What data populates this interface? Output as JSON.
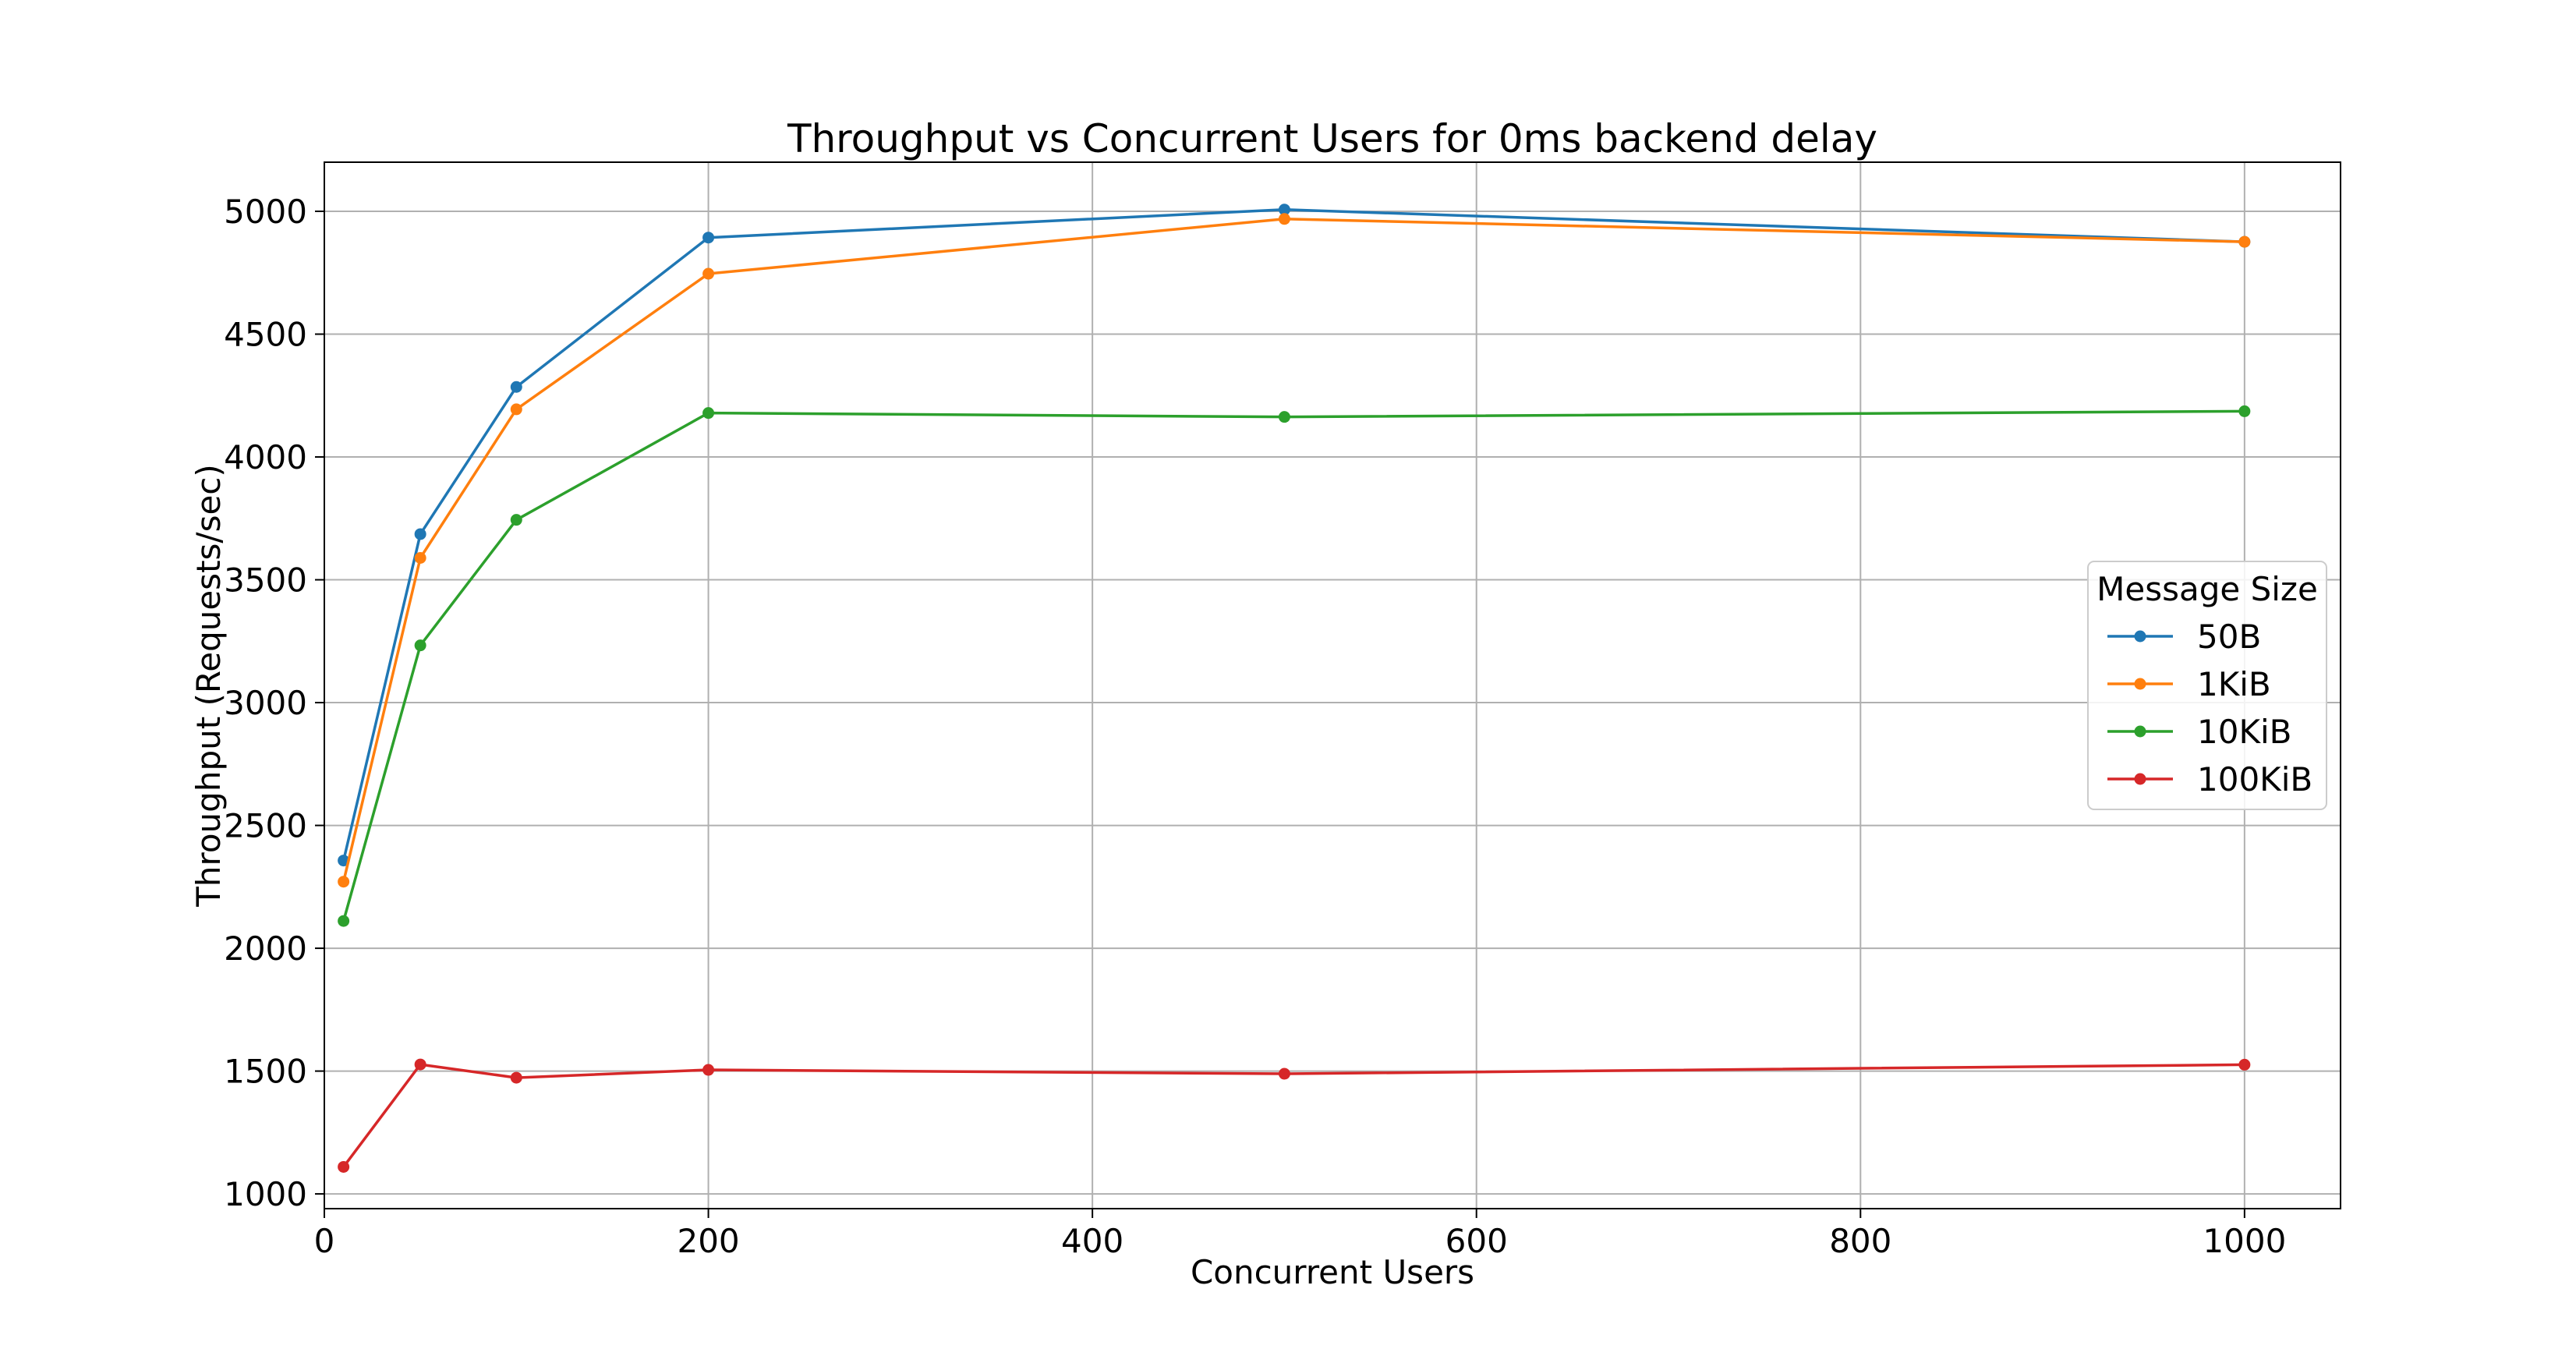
{
  "chart_data": {
    "type": "line",
    "title": "Throughput vs Concurrent Users for 0ms backend delay",
    "xlabel": "Concurrent Users",
    "ylabel": "Throughput (Requests/sec)",
    "xlim": [
      0,
      1050
    ],
    "ylim": [
      940,
      5200
    ],
    "xticks": [
      0,
      200,
      400,
      600,
      800,
      1000
    ],
    "yticks": [
      1000,
      1500,
      2000,
      2500,
      3000,
      3500,
      4000,
      4500,
      5000
    ],
    "grid": true,
    "legend": {
      "title": "Message Size",
      "placement": "center-right"
    },
    "x": [
      10,
      50,
      100,
      200,
      500,
      1000
    ],
    "series": [
      {
        "name": "50B",
        "color": "#1f77b4",
        "values": [
          2357,
          3686,
          4285,
          4893,
          5007,
          4876
        ]
      },
      {
        "name": "1KiB",
        "color": "#ff7f0e",
        "values": [
          2271,
          3589,
          4194,
          4746,
          4969,
          4876
        ]
      },
      {
        "name": "10KiB",
        "color": "#2ca02c",
        "values": [
          2111,
          3233,
          3744,
          4179,
          4163,
          4186
        ]
      },
      {
        "name": "100KiB",
        "color": "#d62728",
        "values": [
          1110,
          1527,
          1473,
          1505,
          1489,
          1526
        ]
      }
    ]
  }
}
